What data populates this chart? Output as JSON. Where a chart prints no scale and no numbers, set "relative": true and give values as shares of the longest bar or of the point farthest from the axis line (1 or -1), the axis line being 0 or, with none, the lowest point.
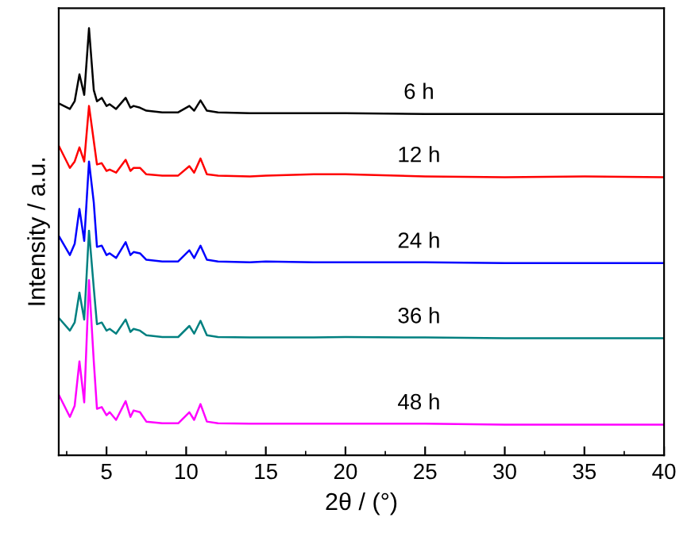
{
  "chart_data": {
    "type": "line",
    "xlabel": "2θ / (°)",
    "ylabel": "Intensity / a.u.",
    "relative": true,
    "xlim": [
      2,
      40
    ],
    "xticks": [
      5,
      10,
      15,
      20,
      25,
      30,
      35,
      40
    ],
    "tick_labels": "x",
    "grid": false,
    "legend": false,
    "marker": "none",
    "line_style": "solid",
    "x": [
      2.0,
      2.7,
      3.0,
      3.3,
      3.6,
      3.9,
      4.2,
      4.4,
      4.7,
      5.0,
      5.2,
      5.6,
      6.2,
      6.5,
      6.7,
      7.1,
      7.5,
      8.5,
      9.5,
      10.2,
      10.5,
      10.9,
      11.3,
      12,
      14,
      15,
      18,
      20,
      25,
      30,
      35,
      40
    ],
    "series": [
      {
        "name": "6 h",
        "color": "#000000",
        "values": [
          0.824,
          0.811,
          0.829,
          0.892,
          0.844,
          1.0,
          0.855,
          0.829,
          0.837,
          0.818,
          0.822,
          0.811,
          0.837,
          0.814,
          0.818,
          0.814,
          0.807,
          0.803,
          0.803,
          0.818,
          0.807,
          0.831,
          0.807,
          0.803,
          0.801,
          0.801,
          0.801,
          0.801,
          0.799,
          0.799,
          0.799,
          0.799
        ]
      },
      {
        "name": "12 h",
        "color": "#ff0000",
        "values": [
          0.725,
          0.673,
          0.688,
          0.721,
          0.688,
          0.818,
          0.736,
          0.681,
          0.684,
          0.666,
          0.669,
          0.662,
          0.692,
          0.666,
          0.673,
          0.673,
          0.658,
          0.655,
          0.655,
          0.677,
          0.662,
          0.695,
          0.658,
          0.655,
          0.653,
          0.655,
          0.658,
          0.658,
          0.653,
          0.651,
          0.653,
          0.651
        ]
      },
      {
        "name": "24 h",
        "color": "#0000ff",
        "values": [
          0.514,
          0.469,
          0.495,
          0.577,
          0.502,
          0.688,
          0.592,
          0.488,
          0.491,
          0.469,
          0.473,
          0.462,
          0.499,
          0.469,
          0.476,
          0.473,
          0.458,
          0.454,
          0.454,
          0.48,
          0.462,
          0.491,
          0.458,
          0.454,
          0.452,
          0.454,
          0.452,
          0.452,
          0.452,
          0.45,
          0.45,
          0.45
        ]
      },
      {
        "name": "36 h",
        "color": "#008080",
        "values": [
          0.322,
          0.292,
          0.311,
          0.381,
          0.318,
          0.526,
          0.392,
          0.307,
          0.311,
          0.292,
          0.296,
          0.285,
          0.318,
          0.289,
          0.296,
          0.292,
          0.281,
          0.277,
          0.277,
          0.303,
          0.285,
          0.315,
          0.281,
          0.277,
          0.276,
          0.276,
          0.276,
          0.277,
          0.276,
          0.274,
          0.274,
          0.274
        ]
      },
      {
        "name": "48 h",
        "color": "#ff00ff",
        "values": [
          0.142,
          0.09,
          0.116,
          0.22,
          0.124,
          0.41,
          0.22,
          0.109,
          0.113,
          0.094,
          0.101,
          0.083,
          0.127,
          0.09,
          0.105,
          0.101,
          0.079,
          0.075,
          0.075,
          0.101,
          0.083,
          0.12,
          0.079,
          0.075,
          0.074,
          0.074,
          0.074,
          0.074,
          0.074,
          0.072,
          0.072,
          0.072
        ]
      }
    ]
  }
}
